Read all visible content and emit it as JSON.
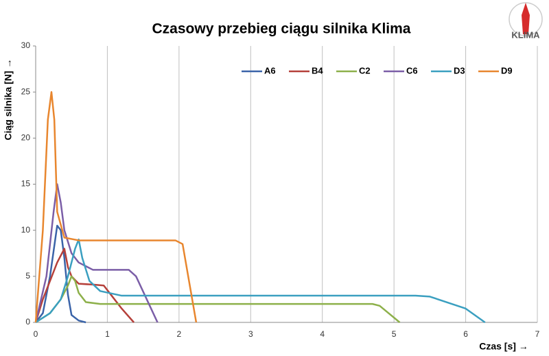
{
  "chart_data": {
    "type": "line",
    "title": "Czasowy przebieg ciągu silnika Klima",
    "x_label": "Czas [s] →",
    "y_label": "Ciąg silnika [N] →",
    "logo_text": "KLIMA",
    "xlim": [
      0,
      7
    ],
    "xticks": [
      0,
      1,
      2,
      3,
      4,
      5,
      6,
      7
    ],
    "ylim": [
      0,
      30
    ],
    "yticks": [
      0,
      5,
      10,
      15,
      20,
      25,
      30
    ],
    "grid": "x",
    "legend": "top-right",
    "series": [
      {
        "name": "A6",
        "color": "#3a63a8",
        "x": [
          0,
          0.1,
          0.2,
          0.3,
          0.35,
          0.4,
          0.45,
          0.5,
          0.6,
          0.7
        ],
        "values": [
          0,
          1,
          5,
          10.5,
          10,
          7,
          3,
          0.8,
          0.2,
          0
        ]
      },
      {
        "name": "B4",
        "color": "#b5403a",
        "x": [
          0,
          0.1,
          0.2,
          0.3,
          0.4,
          0.45,
          0.5,
          0.6,
          0.8,
          0.95,
          1.05,
          1.2,
          1.37
        ],
        "values": [
          0,
          2.5,
          4.5,
          6.5,
          8,
          6,
          5,
          4.2,
          4.1,
          4,
          3,
          1.5,
          0
        ]
      },
      {
        "name": "C2",
        "color": "#8db04a",
        "x": [
          0,
          0.2,
          0.35,
          0.45,
          0.5,
          0.55,
          0.6,
          0.7,
          0.9,
          1.2,
          4.7,
          4.8,
          5.08
        ],
        "values": [
          0,
          1,
          2.5,
          4,
          5,
          4.5,
          3.2,
          2.2,
          2,
          2,
          2,
          1.8,
          0
        ]
      },
      {
        "name": "C6",
        "color": "#7b5ea7",
        "x": [
          0,
          0.15,
          0.25,
          0.3,
          0.35,
          0.4,
          0.5,
          0.6,
          0.8,
          1.3,
          1.4,
          1.55,
          1.7
        ],
        "values": [
          0,
          5,
          12,
          15,
          13,
          10,
          7.5,
          6.5,
          5.7,
          5.7,
          5,
          2.5,
          0
        ]
      },
      {
        "name": "D3",
        "color": "#3a9fc0",
        "x": [
          0,
          0.2,
          0.35,
          0.45,
          0.55,
          0.6,
          0.65,
          0.75,
          0.9,
          1.2,
          3,
          5.3,
          5.5,
          6,
          6.27
        ],
        "values": [
          0,
          1,
          2.5,
          5,
          8,
          9,
          7,
          4.5,
          3.4,
          2.9,
          2.9,
          2.9,
          2.8,
          1.5,
          0
        ]
      },
      {
        "name": "D9",
        "color": "#e8862e",
        "x": [
          0,
          0.1,
          0.17,
          0.22,
          0.26,
          0.3,
          0.4,
          0.6,
          1.5,
          1.95,
          2.05,
          2.24
        ],
        "values": [
          0,
          10,
          22,
          25,
          22,
          12,
          9.2,
          8.9,
          8.9,
          8.9,
          8.5,
          0
        ]
      }
    ]
  }
}
